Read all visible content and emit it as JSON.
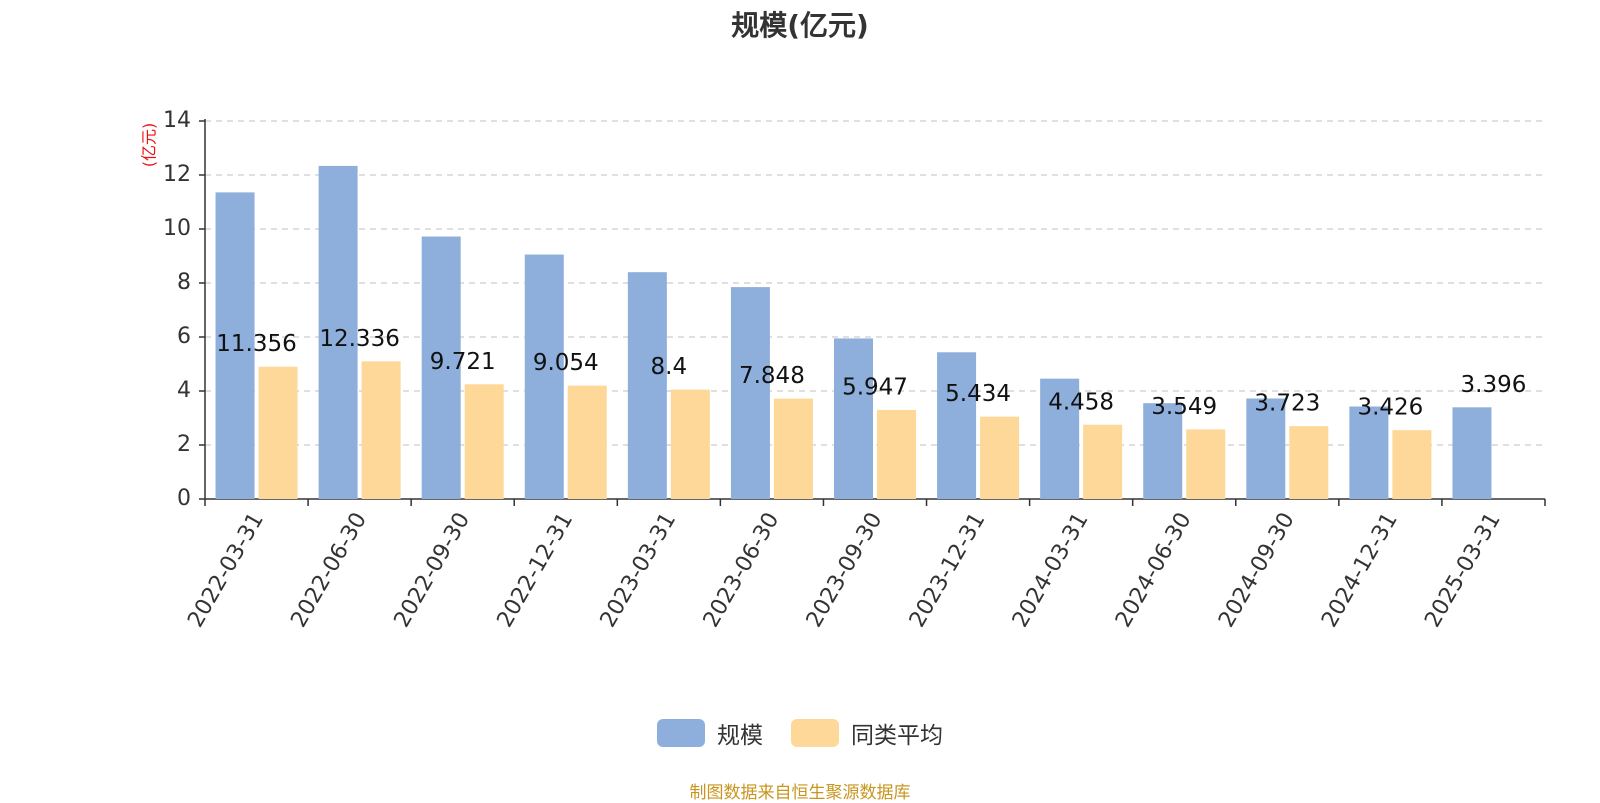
{
  "chart_data": {
    "type": "bar",
    "title": "规模(亿元)",
    "ylabel": "(亿元)",
    "xlabel": "",
    "ylim": [
      0,
      14
    ],
    "yticks": [
      0,
      2,
      4,
      6,
      8,
      10,
      12,
      14
    ],
    "grid": true,
    "legend_position": "bottom",
    "categories": [
      "2022-03-31",
      "2022-06-30",
      "2022-09-30",
      "2022-12-31",
      "2023-03-31",
      "2023-06-30",
      "2023-09-30",
      "2023-12-31",
      "2024-03-31",
      "2024-06-30",
      "2024-09-30",
      "2024-12-31",
      "2025-03-31"
    ],
    "series": [
      {
        "name": "规模",
        "color": "#8eaedb",
        "values": [
          11.356,
          12.336,
          9.721,
          9.054,
          8.4,
          7.848,
          5.947,
          5.434,
          4.458,
          3.549,
          3.723,
          3.426,
          3.396
        ],
        "labels": [
          "11.356",
          "12.336",
          "9.721",
          "9.054",
          "8.4",
          "7.848",
          "5.947",
          "5.434",
          "4.458",
          "3.549",
          "3.723",
          "3.426",
          "3.396"
        ]
      },
      {
        "name": "同类平均",
        "color": "#fed899",
        "values": [
          4.9,
          5.1,
          4.25,
          4.2,
          4.05,
          3.72,
          3.3,
          3.05,
          2.75,
          2.58,
          2.7,
          2.55,
          null
        ]
      }
    ]
  },
  "footer": {
    "source": "制图数据来自恒生聚源数据库"
  }
}
